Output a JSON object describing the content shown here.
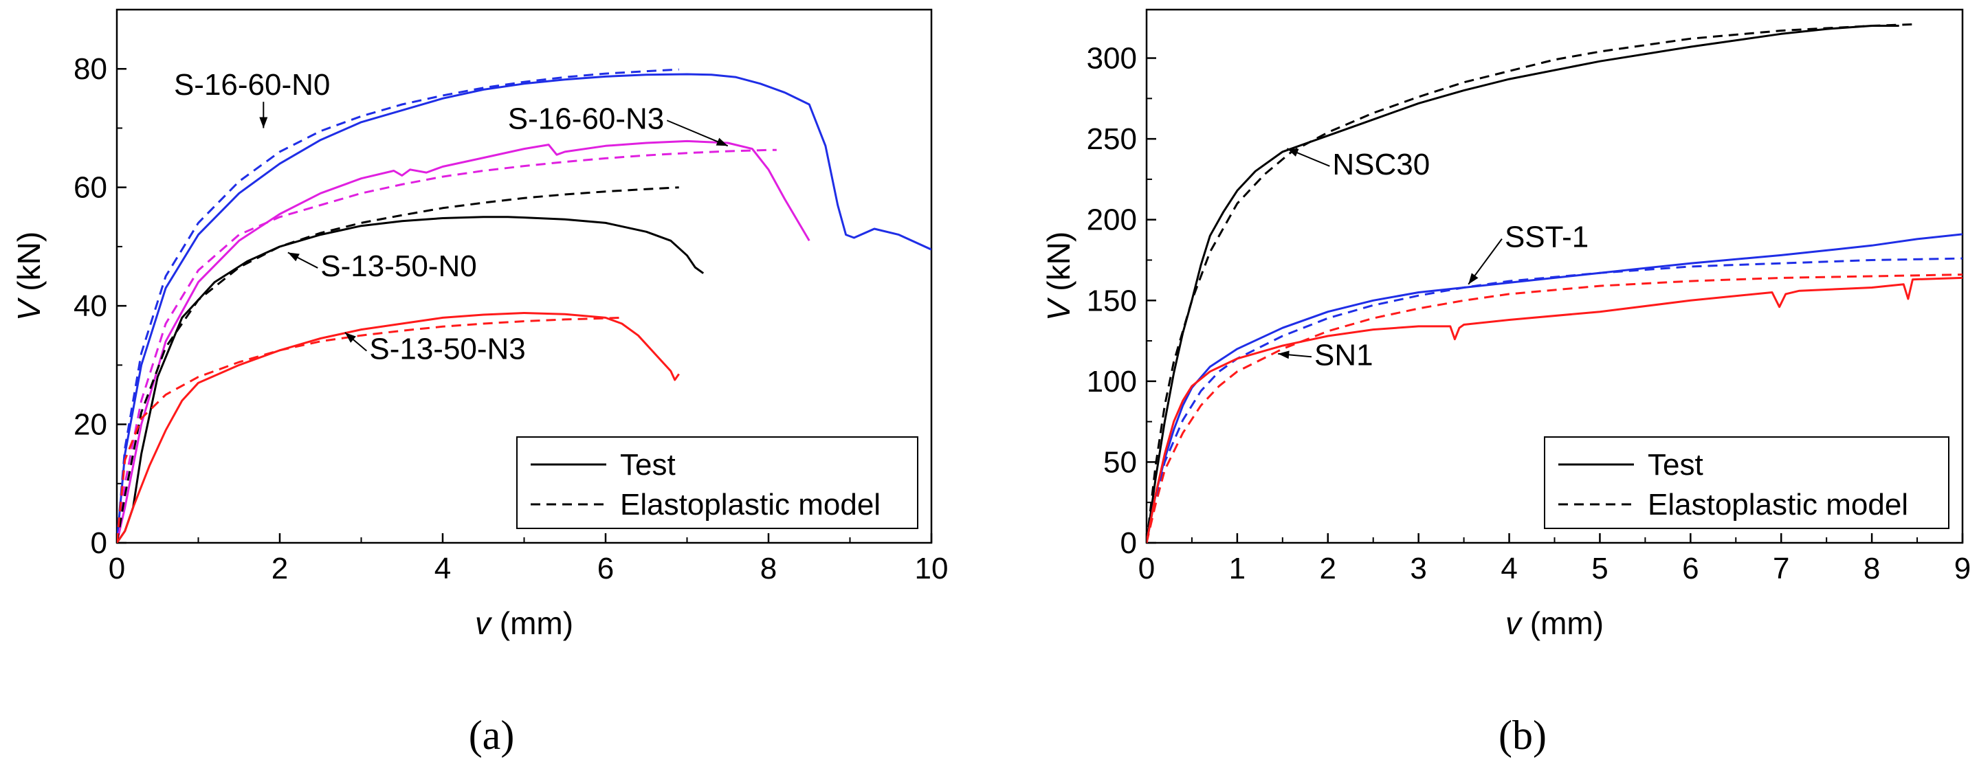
{
  "chart_data": [
    {
      "type": "line",
      "panel_label": "(a)",
      "xlabel_var": "v",
      "xlabel_unit": " (mm)",
      "ylabel_var": "V",
      "ylabel_unit": " (kN)",
      "xlim": [
        0,
        10
      ],
      "ylim": [
        0,
        90
      ],
      "xticks": [
        "0",
        "2",
        "4",
        "6",
        "8",
        "10"
      ],
      "yticks": [
        "0",
        "20",
        "40",
        "60",
        "80"
      ],
      "xtick_values": [
        0,
        2,
        4,
        6,
        8,
        10
      ],
      "ytick_values": [
        0,
        20,
        40,
        60,
        80
      ],
      "grid": false,
      "legend_position": "bottom-right",
      "legend": [
        {
          "label": "Test",
          "style": "solid"
        },
        {
          "label": "Elastoplastic model",
          "style": "dashed"
        }
      ],
      "series": [
        {
          "specimen": "S-16-60-N0",
          "kind": "test",
          "color": "#1f2ee6",
          "x": [
            0,
            0.1,
            0.3,
            0.6,
            1.0,
            1.5,
            2.0,
            2.5,
            3.0,
            3.5,
            4.0,
            4.5,
            5.0,
            5.5,
            6.0,
            6.5,
            7.0,
            7.3,
            7.6,
            7.9,
            8.2,
            8.5,
            8.7,
            8.85,
            8.95,
            9.05,
            9.3,
            9.6,
            10.0
          ],
          "y": [
            0,
            15,
            30,
            43,
            52,
            59,
            64,
            68,
            71,
            73,
            75,
            76.5,
            77.5,
            78.2,
            78.7,
            79,
            79.1,
            79,
            78.6,
            77.5,
            76,
            74,
            67,
            57,
            52,
            51.5,
            53,
            52,
            49.5
          ]
        },
        {
          "specimen": "S-16-60-N0",
          "kind": "model",
          "color": "#1f2ee6",
          "x": [
            0,
            0.1,
            0.3,
            0.6,
            1.0,
            1.5,
            2.0,
            2.5,
            3.0,
            3.5,
            4.0,
            4.5,
            5.0,
            5.5,
            6.0,
            6.5,
            6.9
          ],
          "y": [
            0,
            16,
            32,
            45,
            54,
            61,
            66,
            69.5,
            72,
            74,
            75.5,
            76.8,
            77.8,
            78.6,
            79.2,
            79.6,
            79.9
          ]
        },
        {
          "specimen": "S-16-60-N3",
          "kind": "test",
          "color": "#e020e0",
          "x": [
            0,
            0.1,
            0.3,
            0.6,
            1.0,
            1.5,
            2.0,
            2.5,
            3.0,
            3.4,
            3.5,
            3.6,
            3.8,
            4.0,
            4.5,
            5.0,
            5.3,
            5.4,
            5.5,
            6.0,
            6.5,
            7.0,
            7.5,
            7.8,
            8.0,
            8.2,
            8.5
          ],
          "y": [
            0,
            6,
            20,
            34,
            44,
            51,
            55.5,
            59,
            61.5,
            62.8,
            62,
            63,
            62.5,
            63.5,
            65,
            66.5,
            67.2,
            65.5,
            66,
            67,
            67.5,
            67.8,
            67.5,
            66.5,
            63,
            58,
            51
          ]
        },
        {
          "specimen": "S-16-60-N3",
          "kind": "model",
          "color": "#e020e0",
          "x": [
            0,
            0.1,
            0.3,
            0.6,
            1.0,
            1.5,
            2.0,
            2.5,
            3.0,
            3.5,
            4.0,
            4.5,
            5.0,
            5.5,
            6.0,
            6.5,
            7.0,
            7.5,
            8.0,
            8.1
          ],
          "y": [
            0,
            10,
            24,
            37,
            46,
            52,
            55,
            57,
            59,
            60.5,
            61.8,
            62.8,
            63.6,
            64.3,
            64.9,
            65.4,
            65.8,
            66.1,
            66.3,
            66.3
          ]
        },
        {
          "specimen": "S-13-50-N0",
          "kind": "test",
          "color": "#000000",
          "x": [
            0,
            0.1,
            0.2,
            0.3,
            0.5,
            0.8,
            1.2,
            1.6,
            2.0,
            2.5,
            3.0,
            3.5,
            4.0,
            4.5,
            4.8,
            5.0,
            5.5,
            6.0,
            6.5,
            6.8,
            7.0,
            7.1,
            7.2
          ],
          "y": [
            0,
            2,
            6,
            15,
            28,
            38,
            44,
            47.5,
            50,
            52,
            53.5,
            54.3,
            54.8,
            55,
            55,
            54.9,
            54.6,
            54,
            52.5,
            51,
            48.5,
            46.5,
            45.5
          ]
        },
        {
          "specimen": "S-13-50-N0",
          "kind": "model",
          "color": "#000000",
          "x": [
            0,
            0.1,
            0.3,
            0.6,
            1.0,
            1.5,
            2.0,
            2.5,
            3.0,
            3.5,
            4.0,
            4.5,
            5.0,
            5.5,
            6.0,
            6.5,
            6.9
          ],
          "y": [
            0,
            8,
            22,
            33,
            41,
            46.5,
            50,
            52.3,
            54,
            55.3,
            56.5,
            57.4,
            58.2,
            58.8,
            59.3,
            59.7,
            60
          ]
        },
        {
          "specimen": "S-13-50-N3",
          "kind": "test",
          "color": "#ff1a1a",
          "x": [
            0,
            0.1,
            0.2,
            0.4,
            0.6,
            0.8,
            1.0,
            1.5,
            2.0,
            2.5,
            3.0,
            3.5,
            4.0,
            4.5,
            5.0,
            5.5,
            6.0,
            6.2,
            6.4,
            6.6,
            6.8,
            6.85,
            6.9
          ],
          "y": [
            0,
            2,
            6,
            13,
            19,
            24,
            27,
            30,
            32.5,
            34.5,
            36,
            37,
            38,
            38.5,
            38.8,
            38.6,
            38,
            37,
            35,
            32,
            29,
            27.5,
            28.5
          ]
        },
        {
          "specimen": "S-13-50-N3",
          "kind": "model",
          "color": "#ff1a1a",
          "x": [
            0,
            0.1,
            0.3,
            0.6,
            1.0,
            1.5,
            2.0,
            2.5,
            3.0,
            3.5,
            4.0,
            4.5,
            5.0,
            5.5,
            6.0,
            6.2
          ],
          "y": [
            0,
            14,
            21,
            25,
            28,
            30.5,
            32.5,
            34,
            35,
            35.8,
            36.5,
            37,
            37.4,
            37.7,
            37.9,
            38
          ]
        }
      ],
      "annotations": [
        {
          "text": "S-16-60-N0",
          "x": 0.7,
          "y": 75.6,
          "ax": 1.8,
          "ay": 70
        },
        {
          "text": "S-16-60-N3",
          "x": 4.8,
          "y": 69.9,
          "ax": 7.5,
          "ay": 67
        },
        {
          "text": "S-13-50-N0",
          "x": 2.5,
          "y": 45,
          "ax": 2.1,
          "ay": 49
        },
        {
          "text": "S-13-50-N3",
          "x": 3.1,
          "y": 31,
          "ax": 2.8,
          "ay": 35.5
        }
      ]
    },
    {
      "type": "line",
      "panel_label": "(b)",
      "xlabel_var": "v",
      "xlabel_unit": " (mm)",
      "ylabel_var": "V",
      "ylabel_unit": " (kN)",
      "xlim": [
        0,
        9
      ],
      "ylim": [
        0,
        330
      ],
      "xticks": [
        "0",
        "1",
        "2",
        "3",
        "4",
        "5",
        "6",
        "7",
        "8",
        "9"
      ],
      "yticks": [
        "0",
        "50",
        "100",
        "150",
        "200",
        "250",
        "300"
      ],
      "xtick_values": [
        0,
        1,
        2,
        3,
        4,
        5,
        6,
        7,
        8,
        9
      ],
      "ytick_values": [
        0,
        50,
        100,
        150,
        200,
        250,
        300
      ],
      "grid": false,
      "legend_position": "bottom-right",
      "legend": [
        {
          "label": "Test",
          "style": "solid"
        },
        {
          "label": "Elastoplastic model",
          "style": "dashed"
        }
      ],
      "series": [
        {
          "specimen": "NSC30",
          "kind": "test",
          "color": "#000000",
          "x": [
            0,
            0.1,
            0.2,
            0.3,
            0.4,
            0.5,
            0.6,
            0.7,
            0.85,
            1.0,
            1.2,
            1.5,
            2.0,
            2.5,
            3.0,
            3.5,
            4.0,
            5.0,
            6.0,
            7.0,
            7.5,
            8.0,
            8.3
          ],
          "y": [
            0,
            40,
            75,
            105,
            130,
            150,
            172,
            190,
            205,
            218,
            230,
            242,
            252,
            262,
            272,
            280,
            287,
            298,
            307,
            315,
            318,
            320,
            320
          ]
        },
        {
          "specimen": "NSC30",
          "kind": "model",
          "color": "#000000",
          "x": [
            0,
            0.1,
            0.2,
            0.3,
            0.5,
            0.7,
            1.0,
            1.3,
            1.6,
            2.0,
            2.5,
            3.0,
            3.5,
            4.0,
            4.5,
            5.0,
            6.0,
            7.0,
            8.0,
            8.5
          ],
          "y": [
            0,
            48,
            85,
            112,
            150,
            180,
            210,
            228,
            242,
            254,
            266,
            276,
            285,
            292,
            299,
            304,
            312,
            317,
            320,
            321
          ]
        },
        {
          "specimen": "SST-1",
          "kind": "test",
          "color": "#1f2ee6",
          "x": [
            0,
            0.1,
            0.2,
            0.3,
            0.4,
            0.5,
            0.7,
            1.0,
            1.5,
            2.0,
            2.5,
            3.0,
            3.5,
            4.0,
            5.0,
            6.0,
            7.0,
            7.5,
            8.0,
            8.5,
            9.0
          ],
          "y": [
            0,
            30,
            52,
            70,
            85,
            96,
            109,
            120,
            133,
            143,
            150,
            155,
            158,
            161,
            167,
            173,
            178,
            181,
            184,
            188,
            191
          ]
        },
        {
          "specimen": "SST-1",
          "kind": "model",
          "color": "#1f2ee6",
          "x": [
            0,
            0.1,
            0.2,
            0.4,
            0.6,
            0.8,
            1.0,
            1.5,
            2.0,
            2.5,
            3.0,
            3.5,
            4.0,
            5.0,
            6.0,
            7.0,
            8.0,
            9.0
          ],
          "y": [
            0,
            28,
            50,
            76,
            94,
            106,
            114,
            128,
            139,
            147,
            153,
            158,
            162,
            167,
            171,
            173,
            175,
            176
          ]
        },
        {
          "specimen": "SN1",
          "kind": "test",
          "color": "#ff1a1a",
          "x": [
            0,
            0.1,
            0.2,
            0.3,
            0.4,
            0.5,
            0.7,
            1.0,
            1.5,
            2.0,
            2.5,
            3.0,
            3.35,
            3.4,
            3.45,
            3.5,
            4.0,
            5.0,
            6.0,
            6.9,
            6.98,
            7.05,
            7.2,
            8.0,
            8.35,
            8.4,
            8.45,
            9.0
          ],
          "y": [
            0,
            30,
            55,
            75,
            88,
            97,
            106,
            114,
            122,
            128,
            132,
            134,
            134,
            126,
            133,
            135,
            138,
            143,
            150,
            155,
            146,
            154,
            156,
            158,
            160,
            151,
            163,
            164
          ]
        },
        {
          "specimen": "SN1",
          "kind": "model",
          "color": "#ff1a1a",
          "x": [
            0,
            0.1,
            0.2,
            0.4,
            0.6,
            0.8,
            1.0,
            1.5,
            2.0,
            2.5,
            3.0,
            3.5,
            4.0,
            5.0,
            6.0,
            7.0,
            8.0,
            9.0
          ],
          "y": [
            0,
            24,
            45,
            68,
            85,
            97,
            106,
            120,
            131,
            139,
            145,
            150,
            154,
            159,
            162,
            164,
            165,
            166
          ]
        }
      ],
      "annotations": [
        {
          "text": "NSC30",
          "x": 2.05,
          "y": 228,
          "ax": 1.55,
          "ay": 244
        },
        {
          "text": "SST-1",
          "x": 3.95,
          "y": 183,
          "ax": 3.55,
          "ay": 160
        },
        {
          "text": "SN1",
          "x": 1.85,
          "y": 110,
          "ax": 1.45,
          "ay": 117
        }
      ]
    }
  ]
}
